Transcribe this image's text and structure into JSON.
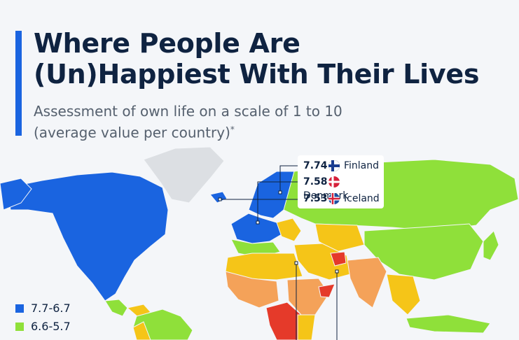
{
  "header": {
    "title_lines": [
      "Where People Are",
      "(Un)Happiest With Their Lives"
    ],
    "subtitle_lines": [
      "Assessment of own life on a scale of 1 to 10",
      "(average value per country)"
    ],
    "subtitle_note": "*"
  },
  "callouts": [
    {
      "value": "7.74",
      "country": "Finland"
    },
    {
      "value": "7.58",
      "country": "Denmark"
    },
    {
      "value": "7.53",
      "country": "Iceland"
    }
  ],
  "legend": [
    {
      "label": "7.7-6.7",
      "color": "#1a64e0"
    },
    {
      "label": "6.6-5.7",
      "color": "#8fe03a"
    }
  ]
}
